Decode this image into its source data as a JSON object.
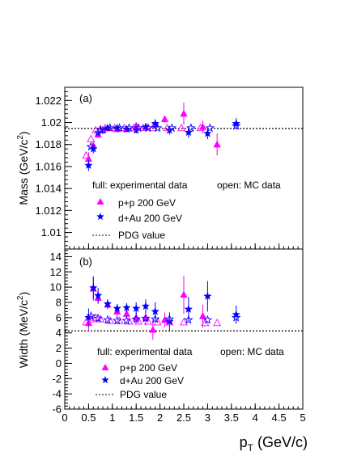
{
  "colors": {
    "pp": "#ff00ff",
    "dau": "#0000ff",
    "axis": "#000000"
  },
  "x_axis": {
    "label_main": "p",
    "label_sub": "T",
    "label_unit": " (GeV/c)",
    "range": [
      0,
      5
    ],
    "ticks": [
      0,
      0.5,
      1,
      1.5,
      2,
      2.5,
      3,
      3.5,
      4,
      4.5,
      5
    ],
    "tick_labels": [
      "0",
      "0.5",
      "1",
      "1.5",
      "2",
      "2.5",
      "3",
      "3.5",
      "4",
      "4.5",
      "5"
    ]
  },
  "chart_data": [
    {
      "type": "scatter",
      "panel_label": "(a)",
      "ylabel_main": "Mass (GeV/c",
      "ylabel_sup": "2",
      "ylabel_end": ")",
      "ylim": [
        1.0085,
        1.0232
      ],
      "yticks": [
        1.01,
        1.012,
        1.014,
        1.016,
        1.018,
        1.02,
        1.022
      ],
      "ytick_labels": [
        "1.01",
        "1.012",
        "1.014",
        "1.016",
        "1.018",
        "1.02",
        "1.022"
      ],
      "reference_line": 1.01946,
      "legend": {
        "header_full": "full: experimental data",
        "header_open": "open: MC data",
        "pp_label": "p+p 200 GeV",
        "dau_label": "d+Au 200 GeV",
        "pdg_label": "PDG value"
      },
      "series": [
        {
          "name": "p+p 200 GeV",
          "marker": "triangle",
          "filled": true,
          "x": [
            0.5,
            0.6,
            0.7,
            0.8,
            0.9,
            1.1,
            1.3,
            1.5,
            1.7,
            1.9,
            2.1,
            2.5,
            2.9,
            3.2
          ],
          "y": [
            1.0167,
            1.0179,
            1.0189,
            1.0193,
            1.0195,
            1.0194,
            1.0194,
            1.0197,
            1.0196,
            1.0198,
            1.0203,
            1.0208,
            1.0196,
            1.018
          ],
          "err": [
            0.0006,
            0.0004,
            0.0003,
            0.0003,
            0.0002,
            0.0002,
            0.0003,
            0.0003,
            0.0003,
            0.0004,
            0.0003,
            0.001,
            0.0006,
            0.001
          ]
        },
        {
          "name": "d+Au 200 GeV",
          "marker": "star",
          "filled": true,
          "x": [
            0.5,
            0.6,
            0.7,
            0.8,
            0.9,
            1.1,
            1.3,
            1.5,
            1.7,
            1.9,
            2.2,
            2.6,
            3.0,
            3.6
          ],
          "y": [
            1.0161,
            1.0176,
            1.0191,
            1.0193,
            1.0195,
            1.0195,
            1.0194,
            1.0193,
            1.0196,
            1.0199,
            1.0193,
            1.0191,
            1.019,
            1.0199
          ],
          "err": [
            0.0005,
            0.0004,
            0.0003,
            0.0003,
            0.0002,
            0.0002,
            0.0002,
            0.0003,
            0.0003,
            0.0004,
            0.0004,
            0.0005,
            0.0005,
            0.0005
          ]
        },
        {
          "name": "p+p MC",
          "marker": "triangle",
          "filled": false,
          "x": [
            0.45,
            0.55,
            0.65,
            0.75,
            0.85,
            1.05,
            1.25,
            1.45,
            1.65,
            1.85,
            2.15,
            2.45,
            2.85
          ],
          "y": [
            1.017,
            1.0185,
            1.0193,
            1.0194,
            1.0195,
            1.0195,
            1.0195,
            1.0195,
            1.0195,
            1.0195,
            1.0195,
            1.0195,
            1.0195
          ],
          "err": [
            0,
            0,
            0,
            0,
            0,
            0,
            0,
            0,
            0,
            0,
            0,
            0,
            0
          ]
        },
        {
          "name": "d+Au MC",
          "marker": "star",
          "filled": false,
          "x": [
            0.55,
            0.75,
            0.95,
            1.15,
            1.35,
            1.55,
            1.75,
            1.95,
            2.25,
            2.65,
            3.05,
            3.6
          ],
          "y": [
            1.0178,
            1.0193,
            1.0195,
            1.0195,
            1.0195,
            1.0195,
            1.0195,
            1.0195,
            1.0195,
            1.0195,
            1.0195,
            1.0197
          ],
          "err": [
            0,
            0,
            0,
            0,
            0,
            0,
            0,
            0,
            0,
            0,
            0,
            0
          ]
        }
      ]
    },
    {
      "type": "scatter",
      "panel_label": "(b)",
      "ylabel_main": "Width (MeV/c",
      "ylabel_sup": "2",
      "ylabel_end": ")",
      "ylim": [
        -6,
        15
      ],
      "yticks": [
        -6,
        -4,
        -2,
        0,
        2,
        4,
        6,
        8,
        10,
        12,
        14
      ],
      "ytick_labels": [
        "-6",
        "-4",
        "-2",
        "0",
        "2",
        "4",
        "6",
        "8",
        "10",
        "12",
        "14"
      ],
      "reference_line": 4.26,
      "legend": {
        "header_full": "full: experimental data",
        "header_open": "open: MC data",
        "pp_label": "p+p 200 GeV",
        "dau_label": "d+Au 200 GeV",
        "pdg_label": "PDG value"
      },
      "series": [
        {
          "name": "p+p 200 GeV",
          "marker": "triangle",
          "filled": true,
          "x": [
            0.5,
            0.6,
            0.7,
            0.9,
            1.1,
            1.3,
            1.5,
            1.7,
            1.85,
            2.1,
            2.5,
            2.9
          ],
          "y": [
            5.3,
            9.8,
            8.6,
            7.7,
            6.8,
            6.5,
            6.0,
            6.0,
            4.4,
            5.7,
            9.0,
            6.2
          ],
          "err": [
            1.0,
            1.6,
            0.8,
            0.6,
            0.6,
            0.6,
            0.8,
            1.0,
            1.3,
            1.0,
            2.5,
            1.5
          ]
        },
        {
          "name": "d+Au 200 GeV",
          "marker": "star",
          "filled": true,
          "x": [
            0.5,
            0.6,
            0.7,
            0.9,
            1.1,
            1.3,
            1.5,
            1.7,
            1.9,
            2.2,
            2.6,
            3.0,
            3.6
          ],
          "y": [
            6.0,
            9.9,
            8.9,
            7.8,
            7.2,
            7.3,
            7.2,
            7.5,
            6.8,
            5.5,
            7.1,
            8.8,
            6.4
          ],
          "err": [
            1.2,
            1.5,
            1.0,
            0.6,
            0.6,
            0.6,
            0.8,
            0.9,
            1.2,
            1.2,
            1.6,
            2.0,
            1.2
          ]
        },
        {
          "name": "p+p MC",
          "marker": "triangle",
          "filled": false,
          "x": [
            0.45,
            0.55,
            0.65,
            0.75,
            0.95,
            1.15,
            1.35,
            1.55,
            1.75,
            1.95,
            2.2,
            2.5,
            2.95,
            3.2
          ],
          "y": [
            5.4,
            5.8,
            6.0,
            5.8,
            5.6,
            5.6,
            5.5,
            5.5,
            5.5,
            5.4,
            5.4,
            5.4,
            5.3,
            5.3
          ],
          "err": [
            0,
            0,
            0,
            0,
            0,
            0,
            0,
            0,
            0,
            0,
            0,
            0,
            0,
            0
          ]
        },
        {
          "name": "d+Au MC",
          "marker": "star",
          "filled": false,
          "x": [
            0.55,
            0.7,
            0.9,
            1.1,
            1.3,
            1.5,
            1.7,
            1.9,
            2.2,
            2.6,
            3.0,
            3.6
          ],
          "y": [
            6.2,
            5.9,
            5.7,
            5.6,
            5.6,
            5.8,
            5.9,
            5.8,
            5.8,
            5.7,
            5.7,
            6.0
          ],
          "err": [
            0,
            0,
            0,
            0,
            0,
            0,
            0,
            0,
            0,
            0,
            0,
            0
          ]
        }
      ]
    }
  ]
}
